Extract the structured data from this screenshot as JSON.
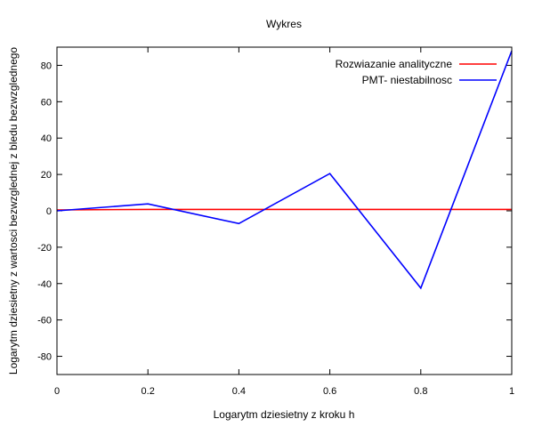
{
  "chart_data": {
    "type": "line",
    "title": "Wykres",
    "xlabel": "Logarytm dziesietny z kroku h",
    "ylabel": "Logarytm dziesietny z wartosci bezwzglednej z bledu bezwzglednego",
    "xlim": [
      0,
      1
    ],
    "ylim": [
      -90,
      90
    ],
    "xticks": [
      0,
      0.2,
      0.4,
      0.6,
      0.8,
      1
    ],
    "xtick_labels": [
      "0",
      "0.2",
      "0.4",
      "0.6",
      "0.8",
      "1"
    ],
    "yticks": [
      -80,
      -60,
      -40,
      -20,
      0,
      20,
      40,
      60,
      80
    ],
    "ytick_labels": [
      "-80",
      "-60",
      "-40",
      "-20",
      "0",
      "20",
      "40",
      "60",
      "80"
    ],
    "grid": false,
    "legend_position": "top-right",
    "series": [
      {
        "name": "Rozwiazanie analityczne",
        "color": "#ff0000",
        "x": [
          0,
          0.2,
          0.4,
          0.6,
          0.8,
          1
        ],
        "y": [
          0.5,
          0.8,
          0.8,
          0.8,
          0.8,
          0.8
        ]
      },
      {
        "name": "PMT- niestabilnosc",
        "color": "#0000ff",
        "x": [
          0,
          0.2,
          0.4,
          0.6,
          0.8,
          1
        ],
        "y": [
          0,
          3.8,
          -7,
          20.5,
          -42.5,
          88
        ]
      }
    ]
  }
}
